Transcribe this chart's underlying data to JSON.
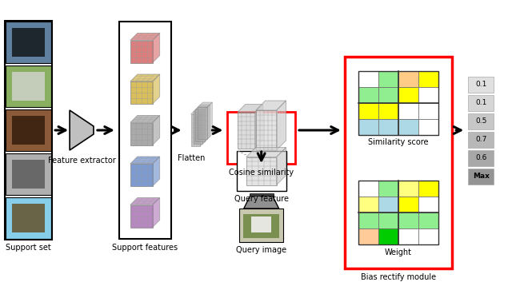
{
  "support_set_label": "Support set",
  "feature_extractor_label": "Feature extractor",
  "support_features_label": "Support features",
  "flatten_label": "Flatten",
  "cosine_similarity_label": "Cosine similarity",
  "query_feature_label": "Query feature",
  "query_image_label": "Query image",
  "bias_rectify_label": "Bias rectify module",
  "similarity_score_label": "Similarity score",
  "weight_label": "Weight",
  "score_labels": [
    "0.1",
    "0.1",
    "0.5",
    "0.7",
    "0.6",
    "Max"
  ],
  "cube_colors_support": [
    "#d97070",
    "#d4b84a",
    "#a0a0a0",
    "#7090cc",
    "#b07ab8"
  ],
  "sim_grid_colors": [
    [
      "#ffffff",
      "#90ee90",
      "#ffcc88",
      "#ffff00"
    ],
    [
      "#90ee90",
      "#90ee90",
      "#ffff00",
      "#ffffff"
    ],
    [
      "#ffff00",
      "#ffff00",
      "#ffffff",
      "#ffffff"
    ],
    [
      "#add8e6",
      "#add8e6",
      "#add8e6",
      "#ffffff"
    ]
  ],
  "weight_grid_colors": [
    [
      "#ffffff",
      "#90ee90",
      "#ffff80",
      "#ffff00"
    ],
    [
      "#ffff80",
      "#add8e6",
      "#ffff00",
      "#ffffff"
    ],
    [
      "#90ee90",
      "#90ee90",
      "#90ee90",
      "#90ee90"
    ],
    [
      "#ffcc99",
      "#00cc00",
      "#ffffff",
      "#ffffff"
    ]
  ],
  "score_gray_levels": [
    0.88,
    0.84,
    0.78,
    0.72,
    0.66,
    0.58
  ],
  "img_colors": [
    {
      "bg": "#87CEEB",
      "fg": "#8B6914",
      "fg2": "#5a8a3a"
    },
    {
      "bg": "#c8c8c8",
      "fg": "#606060",
      "fg2": "#808080"
    },
    {
      "bg": "#8B5030",
      "fg": "#3a2010",
      "fg2": "#c07040"
    },
    {
      "bg": "#90b870",
      "fg": "#e8e8e8",
      "fg2": "#a0a0a0"
    },
    {
      "bg": "#5070a0",
      "fg": "#101010",
      "fg2": "#303030"
    }
  ]
}
